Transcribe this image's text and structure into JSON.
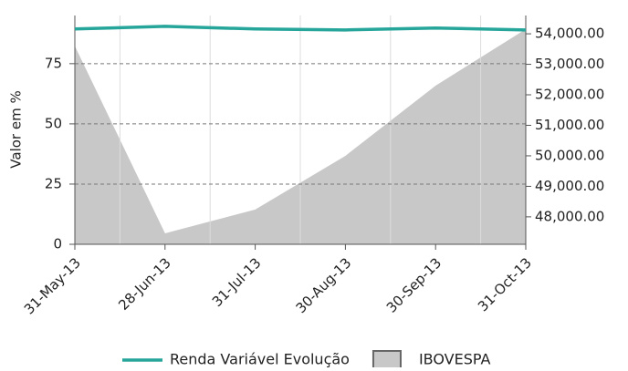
{
  "chart_data": {
    "type": "line-area",
    "y_label": "Valor em %",
    "categories": [
      "31-May-13",
      "28-Jun-13",
      "31-Jul-13",
      "30-Aug-13",
      "30-Sep-13",
      "31-Oct-13"
    ],
    "series": [
      {
        "name": "Renda Variável Evolução",
        "type": "line",
        "color": "#26a69a",
        "values": [
          89.4,
          90.5,
          89.4,
          89.0,
          89.8,
          89.0
        ]
      },
      {
        "name": "IBOVESPA",
        "type": "area",
        "axis": "y2",
        "color": "#c8c8c8",
        "values": [
          53600,
          47460,
          48240,
          50000,
          52300,
          54150
        ]
      }
    ],
    "ylim": [
      0,
      95
    ],
    "yticks": [
      0,
      25,
      50,
      75
    ],
    "y2lim": [
      47100,
      54600
    ],
    "y2ticks": [
      {
        "value": 48000,
        "label": "48,000.00"
      },
      {
        "value": 49000,
        "label": "49,000.00"
      },
      {
        "value": 50000,
        "label": "50,000.00"
      },
      {
        "value": 51000,
        "label": "51,000.00"
      },
      {
        "value": 52000,
        "label": "52,000.00"
      },
      {
        "value": 53000,
        "label": "53,000.00"
      },
      {
        "value": 54000,
        "label": "54,000.00"
      }
    ],
    "grid": true
  }
}
